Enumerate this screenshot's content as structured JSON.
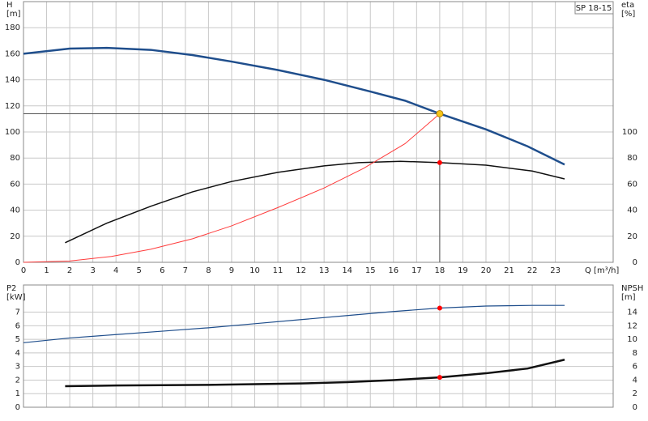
{
  "chart_data": [
    {
      "type": "line",
      "title": "SP 18-15",
      "ylabel_lines": [
        "H",
        "[m]"
      ],
      "y2label_lines": [
        "eta",
        "[%]"
      ],
      "xlabel": "Q [m³/h]",
      "xlim": [
        0,
        25.5
      ],
      "xticks": [
        0,
        1,
        2,
        3,
        4,
        5,
        6,
        7,
        8,
        9,
        10,
        11,
        12,
        13,
        14,
        15,
        16,
        17,
        18,
        19,
        20,
        21,
        22,
        23
      ],
      "ylim": [
        0,
        200
      ],
      "yticks": [
        0,
        20,
        40,
        60,
        80,
        100,
        120,
        140,
        160,
        180
      ],
      "y2lim": [
        0,
        200
      ],
      "y2ticks": [
        0,
        20,
        40,
        60,
        80,
        100
      ],
      "grid": true,
      "series": [
        {
          "color": "#1f4e8c",
          "width": 2.5,
          "x": [
            0,
            2,
            3.6,
            5.5,
            7.3,
            9,
            11,
            13,
            15,
            16.5,
            18,
            20,
            21.8,
            23.4
          ],
          "values": [
            160,
            164,
            164.5,
            163,
            159,
            154,
            147.5,
            140,
            131,
            124,
            114,
            102,
            89,
            75
          ]
        },
        {
          "color": "#111111",
          "width": 1.5,
          "axis": "y2",
          "x": [
            1.8,
            3.6,
            5.5,
            7.3,
            9,
            11,
            13,
            14.5,
            16.3,
            18,
            20,
            22,
            23.4
          ],
          "values": [
            15,
            30,
            43,
            54,
            62,
            69,
            74,
            76.5,
            77.5,
            76.5,
            74.5,
            70,
            64
          ]
        },
        {
          "color": "#ff3b3b",
          "width": 1,
          "x": [
            0,
            2,
            3.8,
            5.5,
            7.3,
            9,
            11,
            13,
            14.7,
            16.5,
            18
          ],
          "values": [
            0,
            1,
            4.5,
            10,
            18,
            28,
            42,
            57,
            72,
            91,
            114
          ]
        }
      ],
      "markers": [
        {
          "x": 18,
          "y": 114,
          "color": "#f5c518",
          "crosshair": true
        },
        {
          "x": 18,
          "y": 76.5,
          "color": "#ff0000",
          "axis": "y2"
        }
      ]
    },
    {
      "type": "line",
      "ylabel_lines": [
        "P2",
        "[kW]"
      ],
      "y2label_lines": [
        "NPSH",
        "[m]"
      ],
      "xlim": [
        0,
        25.5
      ],
      "xticks": [
        0,
        1,
        2,
        3,
        4,
        5,
        6,
        7,
        8,
        9,
        10,
        11,
        12,
        13,
        14,
        15,
        16,
        17,
        18,
        19,
        20,
        21,
        22,
        23
      ],
      "ylim": [
        0,
        9
      ],
      "yticks": [
        0,
        1,
        2,
        3,
        4,
        5,
        6,
        7
      ],
      "y2lim": [
        0,
        18
      ],
      "y2ticks": [
        0,
        2,
        4,
        6,
        8,
        10,
        12,
        14
      ],
      "grid": true,
      "series": [
        {
          "color": "#1f4e8c",
          "width": 1.2,
          "x": [
            0,
            2,
            4,
            6,
            8,
            10,
            12,
            14,
            16,
            18,
            20,
            22,
            23.4
          ],
          "values": [
            4.75,
            5.1,
            5.35,
            5.6,
            5.85,
            6.15,
            6.45,
            6.75,
            7.05,
            7.3,
            7.45,
            7.5,
            7.5
          ]
        },
        {
          "color": "#111111",
          "width": 2.5,
          "axis": "y2",
          "x": [
            1.8,
            4,
            6,
            8,
            10,
            12,
            14,
            16,
            18,
            20,
            21.8,
            23.4
          ],
          "values": [
            3.1,
            3.2,
            3.25,
            3.3,
            3.4,
            3.5,
            3.7,
            4,
            4.4,
            5,
            5.7,
            7
          ]
        }
      ],
      "markers": [
        {
          "x": 18,
          "y": 7.3,
          "color": "#ff0000"
        },
        {
          "x": 18,
          "y": 4.4,
          "color": "#ff0000",
          "axis": "y2"
        }
      ]
    }
  ]
}
